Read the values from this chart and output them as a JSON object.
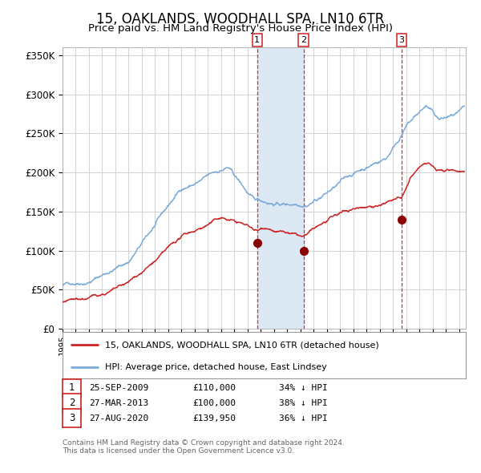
{
  "title": "15, OAKLANDS, WOODHALL SPA, LN10 6TR",
  "subtitle": "Price paid vs. HM Land Registry's House Price Index (HPI)",
  "title_fontsize": 12,
  "subtitle_fontsize": 9.5,
  "ylim": [
    0,
    360000
  ],
  "yticks": [
    0,
    50000,
    100000,
    150000,
    200000,
    250000,
    300000,
    350000
  ],
  "ytick_labels": [
    "£0",
    "£50K",
    "£100K",
    "£150K",
    "£200K",
    "£250K",
    "£300K",
    "£350K"
  ],
  "xlim_start": 1995.0,
  "xlim_end": 2025.5,
  "background_color": "#ffffff",
  "grid_color": "#cccccc",
  "hpi_color": "#7aabdb",
  "price_color": "#cc2222",
  "sale_marker_color": "#880000",
  "sale_dot_size": 7,
  "transactions": [
    {
      "date": 2009.73,
      "price": 110000,
      "label": "1"
    },
    {
      "date": 2013.24,
      "price": 100000,
      "label": "2"
    },
    {
      "date": 2020.66,
      "price": 139950,
      "label": "3"
    }
  ],
  "shaded_region": [
    2009.73,
    2013.24
  ],
  "shaded_color": "#dde8f5",
  "vline_color": "#cc3333",
  "box_label_color": "#cc2222",
  "legend_entries": [
    "15, OAKLANDS, WOODHALL SPA, LN10 6TR (detached house)",
    "HPI: Average price, detached house, East Lindsey"
  ],
  "footnote": "Contains HM Land Registry data © Crown copyright and database right 2024.\nThis data is licensed under the Open Government Licence v3.0.",
  "table_rows": [
    {
      "num": "1",
      "date": "25-SEP-2009",
      "price": "£110,000",
      "note": "34% ↓ HPI"
    },
    {
      "num": "2",
      "date": "27-MAR-2013",
      "price": "£100,000",
      "note": "38% ↓ HPI"
    },
    {
      "num": "3",
      "date": "27-AUG-2020",
      "price": "£139,950",
      "note": "36% ↓ HPI"
    }
  ]
}
